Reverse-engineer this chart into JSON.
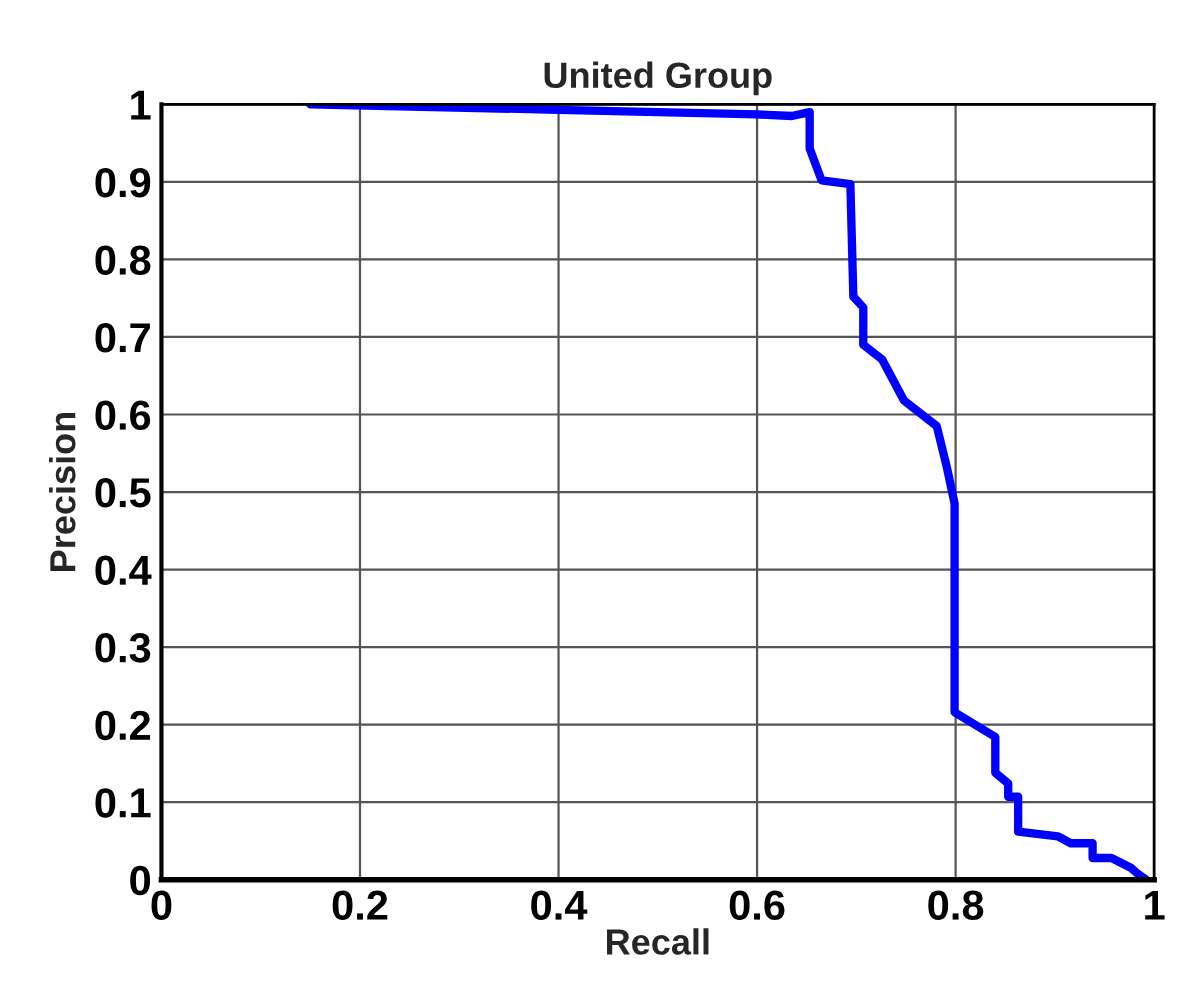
{
  "chart_data": {
    "type": "line",
    "title": "United Group",
    "xlabel": "Recall",
    "ylabel": "Precision",
    "series": [
      {
        "color": "#0000ff",
        "x": [
          0.15,
          0.4,
          0.6,
          0.635,
          0.653,
          0.653,
          0.665,
          0.694,
          0.697,
          0.707,
          0.707,
          0.726,
          0.748,
          0.781,
          0.791,
          0.799,
          0.799,
          0.84,
          0.84,
          0.853,
          0.853,
          0.863,
          0.863,
          0.903,
          0.916,
          0.938,
          0.938,
          0.957,
          0.977,
          0.983,
          0.992
        ],
        "values": [
          1.0,
          0.993,
          0.987,
          0.985,
          0.99,
          0.943,
          0.902,
          0.897,
          0.752,
          0.738,
          0.69,
          0.671,
          0.618,
          0.585,
          0.533,
          0.485,
          0.216,
          0.184,
          0.138,
          0.124,
          0.107,
          0.107,
          0.062,
          0.056,
          0.047,
          0.047,
          0.028,
          0.028,
          0.015,
          0.008,
          0.0
        ]
      }
    ],
    "xlim": [
      0,
      1
    ],
    "ylim": [
      0,
      1
    ],
    "xticks": [
      0,
      0.2,
      0.4,
      0.6,
      0.8,
      1
    ],
    "yticks": [
      0,
      0.1,
      0.2,
      0.3,
      0.4,
      0.5,
      0.6,
      0.7,
      0.8,
      0.9,
      1
    ],
    "grid": true,
    "line_style": "solid",
    "marker": "none"
  }
}
